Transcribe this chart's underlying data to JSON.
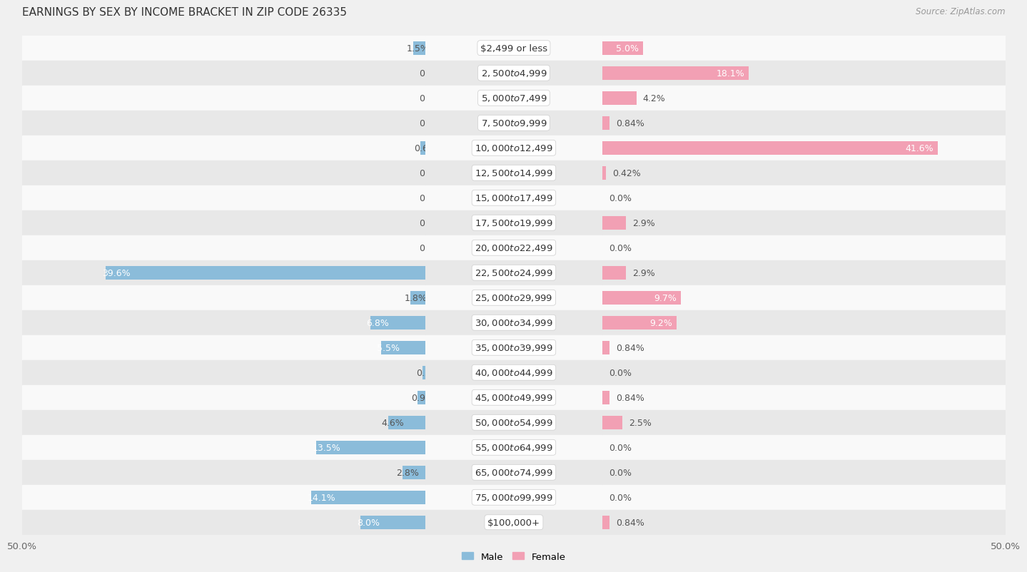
{
  "title": "EARNINGS BY SEX BY INCOME BRACKET IN ZIP CODE 26335",
  "source": "Source: ZipAtlas.com",
  "categories": [
    "$2,499 or less",
    "$2,500 to $4,999",
    "$5,000 to $7,499",
    "$7,500 to $9,999",
    "$10,000 to $12,499",
    "$12,500 to $14,999",
    "$15,000 to $17,499",
    "$17,500 to $19,999",
    "$20,000 to $22,499",
    "$22,500 to $24,999",
    "$25,000 to $29,999",
    "$30,000 to $34,999",
    "$35,000 to $39,999",
    "$40,000 to $44,999",
    "$45,000 to $49,999",
    "$50,000 to $54,999",
    "$55,000 to $64,999",
    "$65,000 to $74,999",
    "$75,000 to $99,999",
    "$100,000+"
  ],
  "male_values": [
    1.5,
    0.0,
    0.0,
    0.0,
    0.61,
    0.0,
    0.0,
    0.0,
    0.0,
    39.6,
    1.8,
    6.8,
    5.5,
    0.31,
    0.92,
    4.6,
    13.5,
    2.8,
    14.1,
    8.0
  ],
  "female_values": [
    5.0,
    18.1,
    4.2,
    0.84,
    41.6,
    0.42,
    0.0,
    2.9,
    0.0,
    2.9,
    9.7,
    9.2,
    0.84,
    0.0,
    0.84,
    2.5,
    0.0,
    0.0,
    0.0,
    0.84
  ],
  "male_color": "#8BBCDA",
  "female_color": "#F2A0B4",
  "background_color": "#f0f0f0",
  "row_bg_white": "#f9f9f9",
  "row_bg_gray": "#e8e8e8",
  "xlim": 50.0,
  "label_fontsize": 9.5,
  "title_fontsize": 11,
  "bar_height": 0.55,
  "value_fontsize": 9.0,
  "cat_fontsize": 9.5
}
